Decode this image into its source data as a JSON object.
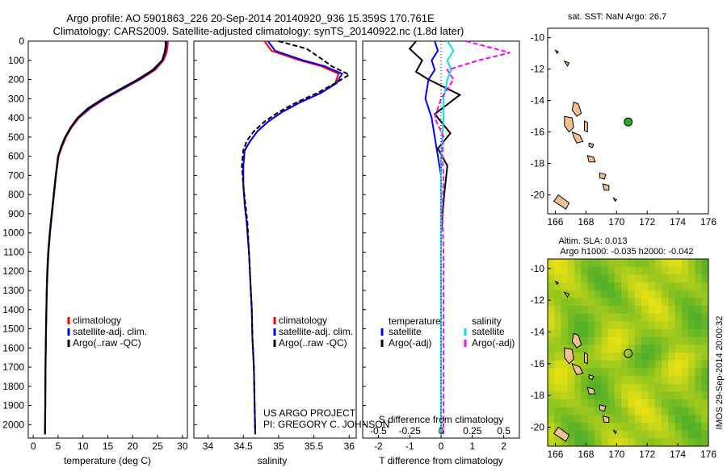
{
  "header": {
    "title_line1": "Argo profile: AO 5901863_226 20-Sep-2014 20140920_936 15.359S 170.761E",
    "title_line2": "Climatology: CARS2009. Satellite-adjusted climatology: synTS_20140922.nc (1.8d later)"
  },
  "colors": {
    "climatology": "#ff0000",
    "satellite": "#0000ff",
    "argo": "#000000",
    "salinity_satellite": "#00e5e5",
    "salinity_argo": "#ff00ff",
    "land": "#f0c090",
    "argo_marker": "#22aa22"
  },
  "chart_data": [
    {
      "type": "line",
      "panel": "temperature",
      "xlabel": "temperature (deg C)",
      "ylabel": "",
      "xlim": [
        -1,
        31
      ],
      "ylim": [
        2070,
        0
      ],
      "y_reversed": true,
      "xticks": [
        "0",
        "5",
        "10",
        "15",
        "20",
        "25",
        "30"
      ],
      "yticks": [
        "0",
        "100",
        "200",
        "300",
        "400",
        "500",
        "600",
        "700",
        "800",
        "900",
        "1000",
        "1100",
        "1200",
        "1300",
        "1400",
        "1500",
        "1600",
        "1700",
        "1800",
        "1900",
        "2000"
      ],
      "legend": [
        "climatology",
        "satellite-adj. clim.",
        "Argo(..raw -QC)"
      ],
      "legend_position": "lower-center",
      "series": [
        {
          "name": "climatology",
          "x": [
            27.1,
            27.0,
            26.8,
            26.2,
            24.5,
            21.5,
            18.0,
            14.5,
            11.5,
            9.2,
            7.7,
            6.6,
            5.8,
            5.1,
            4.6,
            4.2,
            3.8,
            3.4,
            3.1,
            2.9,
            2.75,
            2.6,
            2.5,
            2.45,
            2.4
          ],
          "y": [
            0,
            30,
            60,
            100,
            150,
            200,
            250,
            300,
            350,
            400,
            450,
            500,
            550,
            600,
            700,
            800,
            900,
            1000,
            1100,
            1200,
            1300,
            1500,
            1700,
            1900,
            2050
          ]
        },
        {
          "name": "satellite-adj. clim.",
          "x": [
            26.8,
            26.7,
            26.5,
            26.0,
            24.2,
            21.3,
            17.8,
            14.3,
            11.3,
            9.0,
            7.6,
            6.5,
            5.7,
            5.0,
            4.55,
            4.15,
            3.75,
            3.35,
            3.05,
            2.85,
            2.7,
            2.58,
            2.48,
            2.42,
            2.38
          ],
          "y": [
            0,
            30,
            60,
            100,
            150,
            200,
            250,
            300,
            350,
            400,
            450,
            500,
            550,
            600,
            700,
            800,
            900,
            1000,
            1100,
            1200,
            1300,
            1500,
            1700,
            1900,
            2050
          ]
        },
        {
          "name": "Argo(..raw -QC)",
          "x": [
            26.6,
            26.6,
            26.4,
            25.9,
            24.0,
            21.0,
            17.5,
            14.0,
            11.0,
            8.9,
            7.5,
            6.4,
            5.6,
            5.0,
            4.5,
            4.1,
            3.7,
            3.3,
            3.0,
            2.8,
            2.7,
            2.55,
            2.45,
            2.4,
            2.35
          ],
          "y": [
            0,
            30,
            60,
            100,
            150,
            200,
            250,
            300,
            350,
            400,
            450,
            500,
            550,
            600,
            700,
            800,
            900,
            1000,
            1100,
            1200,
            1300,
            1500,
            1700,
            1900,
            2050
          ]
        }
      ]
    },
    {
      "type": "line",
      "panel": "salinity",
      "xlabel": "salinity",
      "ylabel": "",
      "xlim": [
        33.8,
        36.1
      ],
      "ylim": [
        2070,
        0
      ],
      "y_reversed": true,
      "xticks": [
        "34",
        "34.5",
        "35",
        "35.5",
        "36"
      ],
      "legend": [
        "climatology",
        "satellite-adj. clim.",
        "Argo(..raw -QC)"
      ],
      "legend_position": "lower-right",
      "annotation_line1": "US ARGO PROJECT",
      "annotation_line2": "PI: GREGORY C. JOHNSON",
      "series": [
        {
          "name": "climatology",
          "x": [
            34.8,
            34.9,
            35.3,
            35.6,
            35.85,
            35.8,
            35.6,
            35.3,
            35.05,
            34.85,
            34.7,
            34.6,
            34.52,
            34.5,
            34.5,
            34.52,
            34.55,
            34.58,
            34.6,
            34.62,
            34.63,
            34.65,
            34.66,
            34.67
          ],
          "y": [
            0,
            50,
            100,
            130,
            170,
            220,
            270,
            320,
            370,
            420,
            470,
            520,
            570,
            650,
            750,
            850,
            950,
            1100,
            1250,
            1400,
            1550,
            1700,
            1900,
            2050
          ]
        },
        {
          "name": "satellite-adj. clim.",
          "x": [
            34.85,
            34.95,
            35.35,
            35.65,
            35.9,
            35.82,
            35.6,
            35.3,
            35.05,
            34.85,
            34.7,
            34.6,
            34.52,
            34.5,
            34.5,
            34.52,
            34.55,
            34.58,
            34.6,
            34.62,
            34.63,
            34.65,
            34.66,
            34.67
          ],
          "y": [
            0,
            50,
            100,
            130,
            170,
            220,
            270,
            320,
            370,
            420,
            470,
            520,
            570,
            650,
            750,
            850,
            950,
            1100,
            1250,
            1400,
            1550,
            1700,
            1900,
            2050
          ]
        },
        {
          "name": "Argo(..raw -QC)",
          "x": [
            35.0,
            35.4,
            35.6,
            35.75,
            36.0,
            35.8,
            35.55,
            35.25,
            35.0,
            34.8,
            34.65,
            34.55,
            34.5,
            34.48,
            34.5,
            34.53,
            34.56,
            34.58,
            34.6,
            34.62,
            34.63,
            34.65,
            34.66,
            34.67
          ],
          "y": [
            0,
            40,
            90,
            130,
            175,
            220,
            270,
            320,
            370,
            420,
            470,
            520,
            570,
            650,
            750,
            850,
            950,
            1100,
            1250,
            1400,
            1550,
            1700,
            1900,
            2050
          ]
        }
      ]
    },
    {
      "type": "line",
      "panel": "difference",
      "xlabel": "T difference from climatology",
      "xlabel_top": "S difference from climatology",
      "xlim": [
        -2.5,
        2.5
      ],
      "ylim": [
        2070,
        0
      ],
      "y_reversed": true,
      "xticks": [
        "-2",
        "-1",
        "0",
        "1",
        "2"
      ],
      "xticks_salinity": [
        "-0.5",
        "-0.25",
        "0",
        "0.25",
        "0.5"
      ],
      "legend_title_temperature": "temperature",
      "legend_title_salinity": "salinity",
      "legend_temperature": [
        "satellite",
        "Argo(-adj)"
      ],
      "legend_salinity": [
        "satellite",
        "Argo(-adj)"
      ],
      "series": [
        {
          "name": "temperature satellite",
          "x": [
            -0.2,
            -0.1,
            -0.3,
            -0.2,
            -0.4,
            -0.5,
            -0.3,
            -0.2,
            -0.1,
            0,
            0,
            0,
            0,
            0,
            0,
            0,
            0
          ],
          "y": [
            0,
            50,
            100,
            150,
            200,
            300,
            400,
            500,
            600,
            700,
            900,
            1100,
            1300,
            1500,
            1700,
            1900,
            2050
          ]
        },
        {
          "name": "temperature Argo(-adj)",
          "x": [
            -0.8,
            -1.0,
            -0.6,
            -0.8,
            -0.4,
            0.6,
            -0.2,
            0.3,
            -0.1,
            0.2,
            0.1,
            0,
            0,
            0,
            0,
            0,
            0
          ],
          "y": [
            0,
            40,
            100,
            160,
            200,
            280,
            380,
            480,
            560,
            650,
            800,
            1000,
            1200,
            1400,
            1600,
            1800,
            2050
          ]
        },
        {
          "name": "salinity satellite",
          "x": [
            0.05,
            0.1,
            0.05,
            0.08,
            0.05,
            0.02,
            0.02,
            0.01,
            0,
            0,
            0,
            0,
            0,
            0,
            0
          ],
          "y": [
            0,
            50,
            100,
            150,
            200,
            300,
            400,
            500,
            600,
            700,
            900,
            1100,
            1300,
            1600,
            2050
          ]
        },
        {
          "name": "salinity Argo(-adj)",
          "x": [
            0.2,
            0.55,
            0.3,
            0.05,
            0.1,
            0.0,
            -0.05,
            0.02,
            0.01,
            0.02,
            0.01,
            0.02,
            0.02,
            0.02,
            0.02
          ],
          "y": [
            0,
            60,
            100,
            150,
            200,
            300,
            400,
            500,
            600,
            700,
            900,
            1100,
            1300,
            1600,
            2050
          ]
        }
      ]
    },
    {
      "type": "map",
      "panel": "sst",
      "title": "sat. SST: NaN Argo: 26.7",
      "xlim": [
        165.5,
        176
      ],
      "ylim": [
        -21.2,
        -9.4
      ],
      "xticks": [
        "166",
        "168",
        "170",
        "172",
        "174",
        "176"
      ],
      "yticks": [
        "-10",
        "-12",
        "-14",
        "-16",
        "-18",
        "-20"
      ],
      "argo_position": [
        170.76,
        -15.36
      ]
    },
    {
      "type": "heatmap",
      "panel": "sla",
      "title_line1": "Altim. SLA: 0.013",
      "title_line2": "Argo h1000: -0.035 h2000: -0.042",
      "xlim": [
        165.5,
        176
      ],
      "ylim": [
        -21.2,
        -9.4
      ],
      "xticks": [
        "166",
        "168",
        "170",
        "172",
        "174",
        "176"
      ],
      "yticks": [
        "-10",
        "-12",
        "-14",
        "-16",
        "-18",
        "-20"
      ],
      "argo_position": [
        170.76,
        -15.36
      ],
      "side_label": "IMOS 29-Sep-2014 20:00:32"
    }
  ]
}
